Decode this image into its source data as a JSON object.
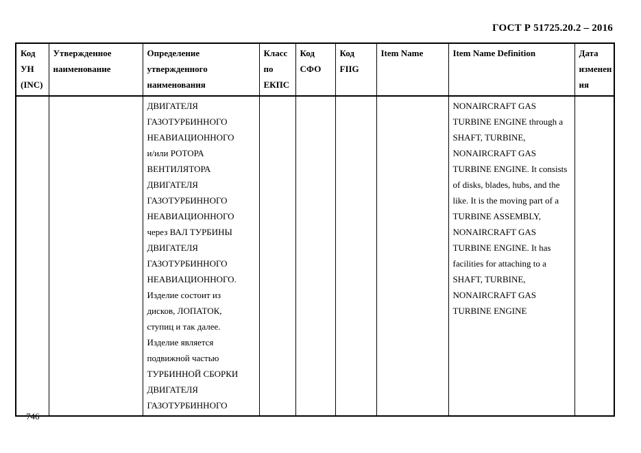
{
  "document": {
    "standard_ref": "ГОСТ Р 51725.20.2 – 2016",
    "page_number": "746"
  },
  "table": {
    "headers": [
      {
        "id": "inc_code",
        "lines": [
          "Код",
          "УН",
          "(INC)"
        ]
      },
      {
        "id": "approved_name",
        "lines": [
          "Утвержденное",
          "наименование"
        ]
      },
      {
        "id": "approved_name_definition",
        "lines": [
          "Определение",
          "утвержденного",
          "наименования"
        ]
      },
      {
        "id": "ekps_class",
        "lines": [
          "Класс",
          "по",
          "ЕКПС"
        ]
      },
      {
        "id": "sfo_code",
        "lines": [
          "Код",
          "СФО"
        ]
      },
      {
        "id": "fiig_code",
        "lines": [
          "Код",
          "FIIG"
        ]
      },
      {
        "id": "item_name",
        "lines": [
          "Item Name"
        ]
      },
      {
        "id": "item_name_definition",
        "lines": [
          "Item Name Definition"
        ]
      },
      {
        "id": "change_date",
        "lines": [
          "Дата",
          "изменен",
          "ия"
        ]
      }
    ],
    "row": {
      "inc_code": "",
      "approved_name": "",
      "definition_ru_lines": [
        "ДВИГАТЕЛЯ",
        "ГАЗОТУРБИННОГО",
        "НЕАВИАЦИОННОГО",
        "и/или РОТОРА",
        "ВЕНТИЛЯТОРА",
        "ДВИГАТЕЛЯ",
        "ГАЗОТУРБИННОГО",
        "НЕАВИАЦИОННОГО",
        "через ВАЛ ТУРБИНЫ",
        "ДВИГАТЕЛЯ",
        "ГАЗОТУРБИННОГО",
        "НЕАВИАЦИОННОГО.",
        "Изделие состоит из",
        "дисков, ЛОПАТОК,",
        "ступиц и так далее.",
        "Изделие является",
        "подвижной частью",
        "ТУРБИННОЙ СБОРКИ",
        "ДВИГАТЕЛЯ",
        "ГАЗОТУРБИННОГО"
      ],
      "ekps_class": "",
      "sfo_code": "",
      "fiig_code": "",
      "item_name": "",
      "item_name_definition_lines": [
        "NONAIRCRAFT GAS",
        "TURBINE ENGINE through a",
        "SHAFT, TURBINE,",
        "NONAIRCRAFT GAS",
        "TURBINE ENGINE. It consists",
        "of disks, blades, hubs, and the",
        "like. It is the moving part of a",
        "TURBINE ASSEMBLY,",
        "NONAIRCRAFT GAS",
        "TURBINE ENGINE. It has",
        "facilities for attaching to a",
        "SHAFT, TURBINE,",
        "NONAIRCRAFT GAS",
        "TURBINE ENGINE"
      ],
      "change_date": ""
    }
  }
}
